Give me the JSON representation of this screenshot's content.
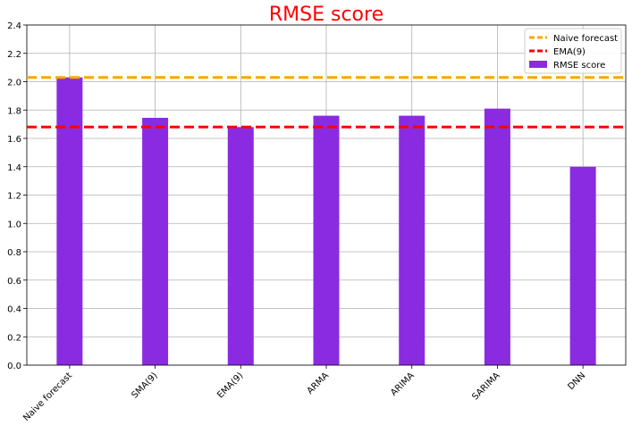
{
  "chart_data": {
    "type": "bar",
    "title": "RMSE score",
    "title_color": "#ff0000",
    "xlabel": "",
    "ylabel": "",
    "categories": [
      "Naive forecast",
      "SMA(9)",
      "EMA(9)",
      "ARMA",
      "ARIMA",
      "SARIMA",
      "DNN"
    ],
    "series": [
      {
        "name": "RMSE score",
        "color": "#8a2be2",
        "values": [
          2.03,
          1.745,
          1.68,
          1.76,
          1.76,
          1.81,
          1.4
        ]
      }
    ],
    "reference_lines": [
      {
        "name": "Naive forecast",
        "value": 2.03,
        "color": "#ffa500",
        "style": "dashed"
      },
      {
        "name": "EMA(9)",
        "value": 1.68,
        "color": "#ff0000",
        "style": "dashed"
      }
    ],
    "ylim": [
      0,
      2.4
    ],
    "yticks": [
      "0.0",
      "0.2",
      "0.4",
      "0.6",
      "0.8",
      "1.0",
      "1.2",
      "1.4",
      "1.6",
      "1.8",
      "2.0",
      "2.2",
      "2.4"
    ],
    "grid": true,
    "legend_position": "top-right",
    "legend": [
      "Naive forecast",
      "EMA(9)",
      "RMSE score"
    ]
  }
}
